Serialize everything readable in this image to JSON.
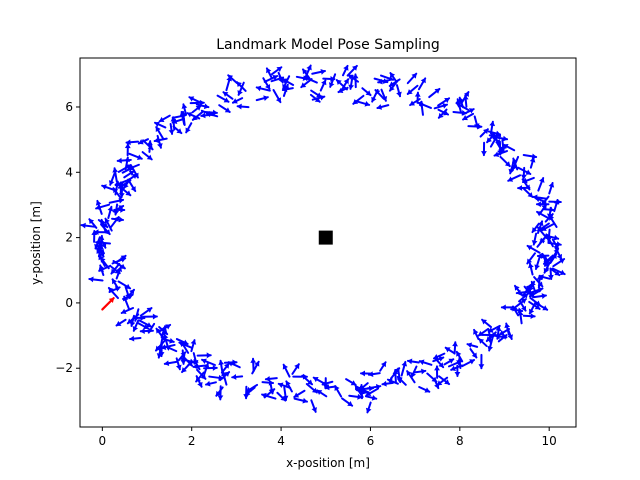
{
  "chart_data": {
    "type": "scatter",
    "title": "Landmark Model Pose Sampling",
    "xlabel": "x-position [m]",
    "ylabel": "y-position [m]",
    "xlim": [
      -0.5,
      10.6
    ],
    "ylim": [
      -3.8,
      7.5
    ],
    "xticks": [
      0,
      2,
      4,
      6,
      8,
      10
    ],
    "yticks": [
      -2,
      0,
      2,
      4,
      6
    ],
    "xtick_labels": [
      "0",
      "2",
      "4",
      "6",
      "8",
      "10"
    ],
    "ytick_labels": [
      "−2",
      "0",
      "2",
      "4",
      "6"
    ],
    "grid": false,
    "landmark": {
      "x": 5.0,
      "y": 2.0,
      "marker": "square",
      "color": "#000000"
    },
    "true_pose": {
      "x": 0.0,
      "y": -0.2,
      "heading_deg": 45,
      "color": "#ff0000"
    },
    "samples": {
      "color": "#0000ff",
      "description_shape": "ring of pose arrows around landmark",
      "center": [
        5.0,
        2.0
      ],
      "radius_x_range": [
        4.7,
        5.2
      ],
      "radius_y_range": [
        4.2,
        5.2
      ],
      "count": 420
    },
    "series": []
  },
  "colors": {
    "samples": "#0000ff",
    "true_pose": "#ff0000",
    "landmark": "#000000",
    "axes": "#000000"
  }
}
